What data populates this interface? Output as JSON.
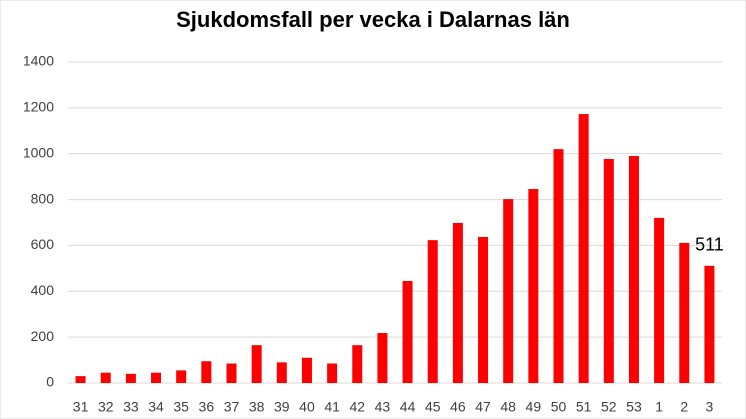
{
  "chart_data": {
    "type": "bar",
    "title": "Sjukdomsfall per vecka i Dalarnas län",
    "categories": [
      "31",
      "32",
      "33",
      "34",
      "35",
      "36",
      "37",
      "38",
      "39",
      "40",
      "41",
      "42",
      "43",
      "44",
      "45",
      "46",
      "47",
      "48",
      "49",
      "50",
      "51",
      "52",
      "53",
      "1",
      "2",
      "3"
    ],
    "values": [
      30,
      45,
      40,
      45,
      55,
      95,
      85,
      165,
      90,
      110,
      85,
      165,
      218,
      445,
      623,
      698,
      637,
      802,
      846,
      1020,
      1173,
      977,
      990,
      720,
      611,
      511
    ],
    "color": "#ff0000",
    "ylim": [
      0,
      1400
    ],
    "yticks": [
      0,
      200,
      400,
      600,
      800,
      1000,
      1200,
      1400
    ],
    "grid": true,
    "data_label_last": true
  }
}
